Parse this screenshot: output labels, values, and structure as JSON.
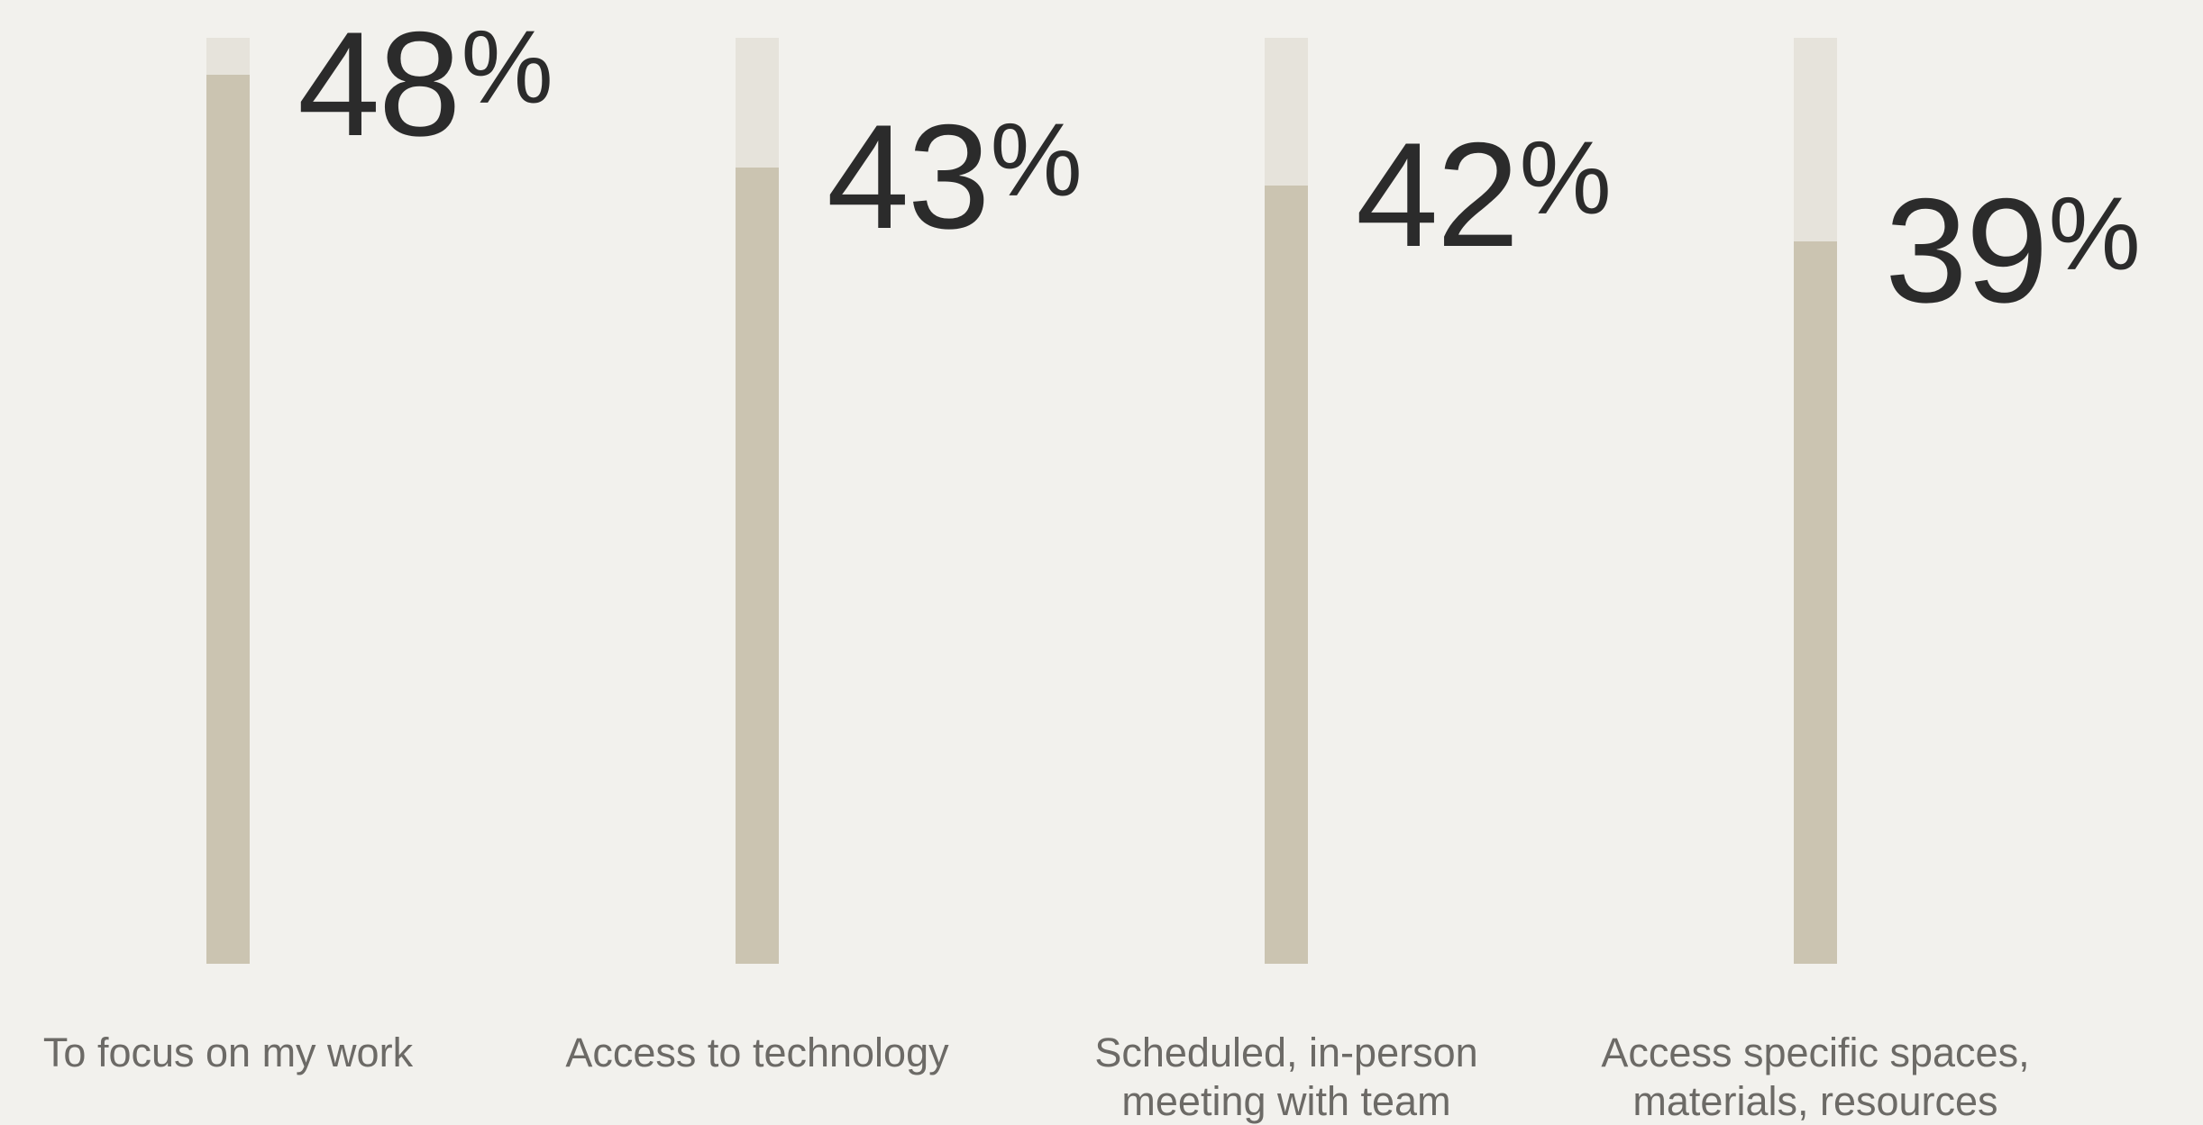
{
  "chart_data": {
    "type": "bar",
    "categories": [
      "To focus on my work",
      "Access to technology",
      "Scheduled, in-person meeting with team",
      "Access specific spaces, materials, resources"
    ],
    "category_lines": [
      [
        "To focus on my work"
      ],
      [
        "Access to technology"
      ],
      [
        "Scheduled, in-person",
        "meeting with team"
      ],
      [
        "Access specific spaces,",
        "materials, resources"
      ]
    ],
    "values": [
      48,
      43,
      42,
      39
    ],
    "value_labels": [
      "48",
      "43",
      "42",
      "39"
    ],
    "value_suffix": "%",
    "title": "",
    "xlabel": "",
    "ylabel": "",
    "ylim": [
      0,
      50
    ],
    "grid": false,
    "legend": "none",
    "colors": {
      "background": "#f2f1ed",
      "track": "#e6e3db",
      "bar": "#cbc4b1",
      "value_text": "#2b2b2b",
      "label_text": "#6c6a66"
    }
  }
}
